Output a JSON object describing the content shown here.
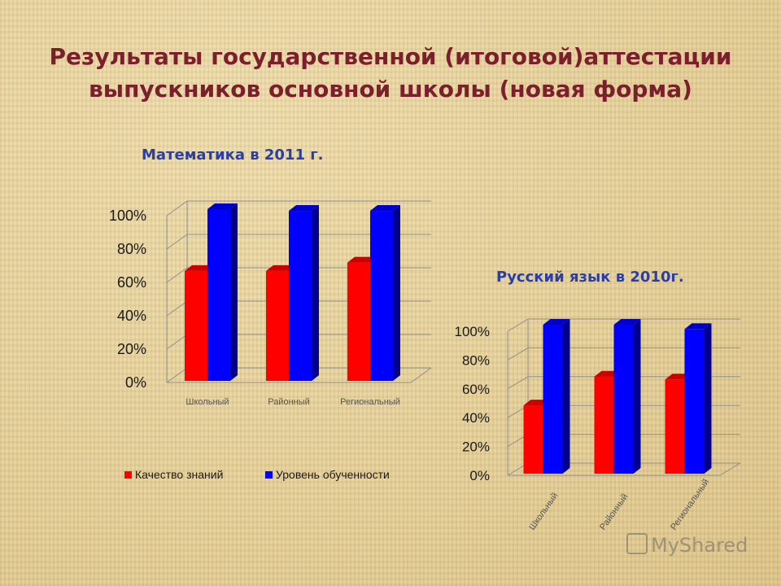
{
  "header": {
    "title_line1": "Результаты государственной (итоговой)аттестации",
    "title_line2": "выпускников основной школы (новая форма)"
  },
  "colors": {
    "series1": "#ff0000",
    "series2": "#0000ff",
    "title": "#7a1f2b",
    "chart_title": "#2b3fa3"
  },
  "watermark": "MyShared",
  "chart_data": [
    {
      "type": "bar",
      "title": "Математика в 2011 г.",
      "categories": [
        "Школьный",
        "Районный",
        "Региональный"
      ],
      "series": [
        {
          "name": "Качество знаний",
          "values": [
            63,
            63,
            68
          ],
          "color": "#ff0000"
        },
        {
          "name": "Уровень обученности",
          "values": [
            100,
            99,
            99
          ],
          "color": "#0000ff"
        }
      ],
      "ylim": [
        0,
        100
      ],
      "yticks": [
        "0%",
        "20%",
        "40%",
        "60%",
        "80%",
        "100%"
      ],
      "grid": true,
      "legend": "bottom"
    },
    {
      "type": "bar",
      "title": "Русский язык в 2010г.",
      "categories": [
        "Школьный",
        "Районный",
        "Региональный"
      ],
      "series": [
        {
          "name": "Качество знаний",
          "values": [
            44,
            64,
            62
          ],
          "color": "#ff0000"
        },
        {
          "name": "Уровень обученности",
          "values": [
            100,
            100,
            97
          ],
          "color": "#0000ff"
        }
      ],
      "ylim": [
        0,
        100
      ],
      "yticks": [
        "0%",
        "20%",
        "40%",
        "60%",
        "80%",
        "100%"
      ],
      "grid": true,
      "legend": "none"
    }
  ]
}
